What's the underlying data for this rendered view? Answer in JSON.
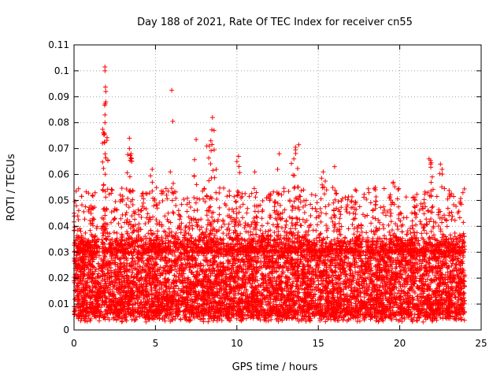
{
  "chart_data": {
    "type": "scatter",
    "title": "Day 188 of 2021, Rate Of TEC Index for receiver cn55",
    "xlabel": "GPS time / hours",
    "ylabel": "ROTI / TECUs",
    "xlim": [
      0,
      25
    ],
    "ylim": [
      0,
      0.11
    ],
    "xticks": [
      0,
      5,
      10,
      15,
      20,
      25
    ],
    "xtick_labels": [
      "0",
      "5",
      "10",
      "15",
      "20",
      "25"
    ],
    "yticks": [
      0,
      0.01,
      0.02,
      0.03,
      0.04,
      0.05,
      0.06,
      0.07,
      0.08,
      0.09,
      0.1,
      0.11
    ],
    "ytick_labels": [
      "0",
      "0.01",
      "0.02",
      "0.03",
      "0.04",
      "0.05",
      "0.06",
      "0.07",
      "0.08",
      "0.09",
      "0.1",
      "0.11"
    ],
    "grid": true,
    "marker": "+",
    "color": "#ff0000",
    "x_data_range": [
      0,
      24
    ],
    "bulk_range": [
      0.005,
      0.035
    ],
    "series": [
      {
        "name": "ROTI",
        "peaks": [
          {
            "x": 1.9,
            "y": 0.1015
          },
          {
            "x": 1.9,
            "y": 0.1
          },
          {
            "x": 1.95,
            "y": 0.092
          },
          {
            "x": 1.95,
            "y": 0.088
          },
          {
            "x": 1.9,
            "y": 0.083
          },
          {
            "x": 1.9,
            "y": 0.08
          },
          {
            "x": 1.85,
            "y": 0.076
          },
          {
            "x": 6.0,
            "y": 0.0925
          },
          {
            "x": 3.4,
            "y": 0.074
          },
          {
            "x": 3.4,
            "y": 0.07
          },
          {
            "x": 3.5,
            "y": 0.068
          },
          {
            "x": 7.5,
            "y": 0.0735
          },
          {
            "x": 8.5,
            "y": 0.082
          },
          {
            "x": 8.6,
            "y": 0.077
          },
          {
            "x": 8.4,
            "y": 0.073
          },
          {
            "x": 8.3,
            "y": 0.071
          },
          {
            "x": 10.1,
            "y": 0.067
          },
          {
            "x": 10.0,
            "y": 0.065
          },
          {
            "x": 12.6,
            "y": 0.068
          },
          {
            "x": 12.5,
            "y": 0.062
          },
          {
            "x": 13.8,
            "y": 0.0715
          },
          {
            "x": 13.6,
            "y": 0.0705
          },
          {
            "x": 13.5,
            "y": 0.066
          },
          {
            "x": 15.3,
            "y": 0.061
          },
          {
            "x": 16.0,
            "y": 0.063
          },
          {
            "x": 21.8,
            "y": 0.066
          },
          {
            "x": 21.9,
            "y": 0.064
          },
          {
            "x": 22.5,
            "y": 0.064
          },
          {
            "x": 22.6,
            "y": 0.062
          },
          {
            "x": 4.8,
            "y": 0.062
          },
          {
            "x": 11.1,
            "y": 0.061
          },
          {
            "x": 18.5,
            "y": 0.055
          },
          {
            "x": 19.6,
            "y": 0.057
          }
        ]
      }
    ]
  }
}
